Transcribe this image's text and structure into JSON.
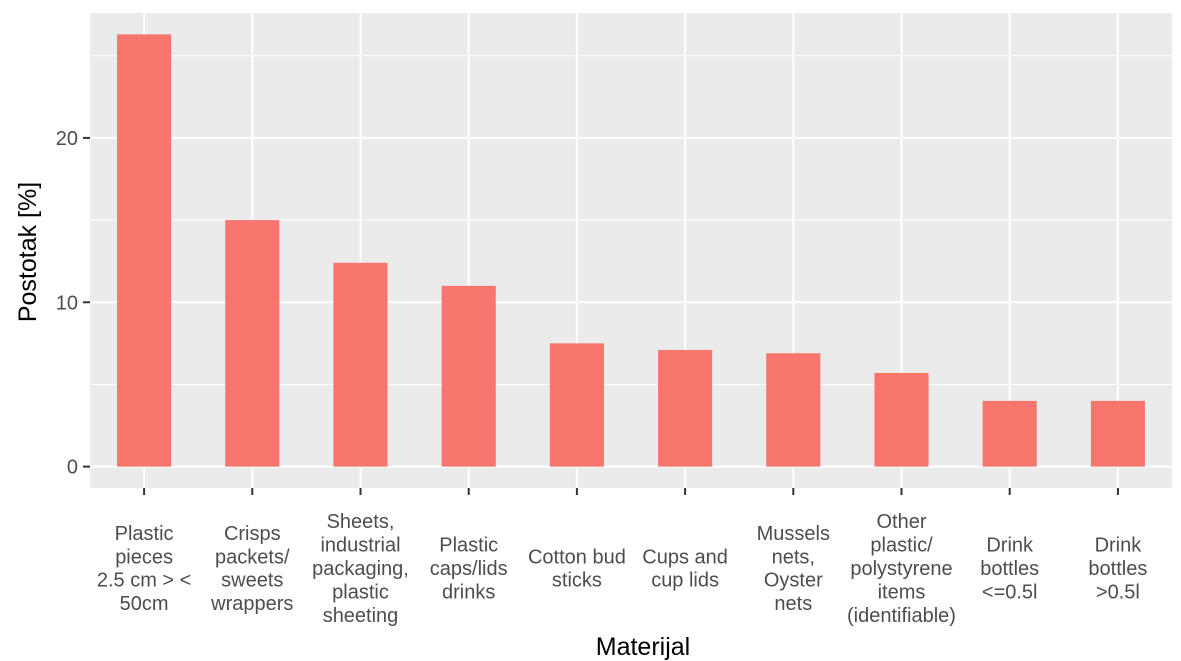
{
  "chart_data": {
    "type": "bar",
    "xlabel": "Materijal",
    "ylabel": "Postotak [%]",
    "categories": [
      [
        "Plastic",
        "pieces",
        "2.5 cm > <",
        "50cm"
      ],
      [
        "Crisps",
        "packets/",
        "sweets",
        "wrappers"
      ],
      [
        "Sheets,",
        "industrial",
        "packaging,",
        "plastic",
        "sheeting"
      ],
      [
        "Plastic",
        "caps/lids",
        "drinks"
      ],
      [
        "Cotton bud",
        "sticks"
      ],
      [
        "Cups and",
        "cup lids"
      ],
      [
        "Mussels",
        "nets,",
        "Oyster",
        "nets"
      ],
      [
        "Other",
        "plastic/",
        "polystyrene",
        "items",
        "(identifiable)"
      ],
      [
        "Drink",
        "bottles",
        "<=0.5l"
      ],
      [
        "Drink",
        "bottles",
        ">0.5l"
      ]
    ],
    "values": [
      26.3,
      15.0,
      12.4,
      11.0,
      7.5,
      7.1,
      6.9,
      5.7,
      4.0,
      4.0
    ],
    "yticks": [
      0,
      10,
      20
    ],
    "ylim": [
      -1.3,
      27.6
    ],
    "grid": true,
    "colors": {
      "bar": "#F8766D",
      "panel": "#EBEBEB",
      "grid": "#FFFFFF"
    }
  }
}
